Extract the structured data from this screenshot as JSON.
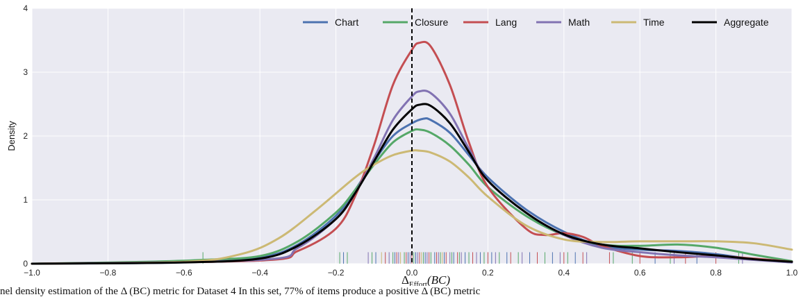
{
  "chart_data": {
    "type": "line",
    "title": "",
    "xlabel": "Δ",
    "xlabel_sub": "Effort",
    "xlabel_arg": "(BC)",
    "ylabel": "Density",
    "xlim": [
      -1.0,
      1.0
    ],
    "ylim": [
      0,
      4
    ],
    "xticks": [
      -1.0,
      -0.8,
      -0.6,
      -0.4,
      -0.2,
      0.0,
      0.2,
      0.4,
      0.6,
      0.8,
      1.0
    ],
    "xtick_labels": [
      "−1.0",
      "−0.8",
      "−0.6",
      "−0.4",
      "−0.2",
      "0.0",
      "0.2",
      "0.4",
      "0.6",
      "0.8",
      "1.0"
    ],
    "yticks": [
      0,
      1,
      2,
      3,
      4
    ],
    "ytick_labels": [
      "0",
      "1",
      "2",
      "3",
      "4"
    ],
    "grid": true,
    "legend_position": "top-right",
    "vline": {
      "x": 0.0,
      "style": "dashed",
      "color": "#000000"
    },
    "series": [
      {
        "name": "Chart",
        "color": "#4c72b0",
        "width": 3,
        "x": [
          -1.0,
          -0.6,
          -0.4,
          -0.3,
          -0.2,
          -0.15,
          -0.1,
          -0.05,
          0.0,
          0.03,
          0.05,
          0.1,
          0.15,
          0.2,
          0.3,
          0.4,
          0.5,
          0.6,
          0.7,
          0.8,
          0.9,
          1.0
        ],
        "y": [
          0.0,
          0.02,
          0.1,
          0.3,
          0.75,
          1.15,
          1.6,
          2.0,
          2.2,
          2.27,
          2.25,
          2.05,
          1.7,
          1.35,
          0.85,
          0.5,
          0.28,
          0.22,
          0.2,
          0.15,
          0.07,
          0.02
        ]
      },
      {
        "name": "Closure",
        "color": "#55a868",
        "width": 3,
        "x": [
          -1.0,
          -0.7,
          -0.55,
          -0.4,
          -0.3,
          -0.2,
          -0.15,
          -0.1,
          -0.05,
          0.0,
          0.02,
          0.05,
          0.1,
          0.15,
          0.2,
          0.3,
          0.4,
          0.5,
          0.6,
          0.7,
          0.8,
          0.9,
          1.0
        ],
        "y": [
          0.0,
          0.03,
          0.06,
          0.12,
          0.35,
          0.8,
          1.15,
          1.55,
          1.9,
          2.08,
          2.1,
          2.05,
          1.85,
          1.55,
          1.2,
          0.75,
          0.45,
          0.3,
          0.28,
          0.3,
          0.25,
          0.14,
          0.04
        ]
      },
      {
        "name": "Lang",
        "color": "#c44e52",
        "width": 3,
        "x": [
          -1.0,
          -0.4,
          -0.3,
          -0.2,
          -0.15,
          -0.1,
          -0.05,
          0.0,
          0.02,
          0.05,
          0.1,
          0.15,
          0.2,
          0.3,
          0.35,
          0.4,
          0.45,
          0.5,
          0.6,
          0.7,
          0.8,
          0.9,
          1.0
        ],
        "y": [
          0.0,
          0.05,
          0.2,
          0.55,
          1.05,
          1.85,
          2.8,
          3.35,
          3.46,
          3.4,
          2.8,
          1.9,
          1.2,
          0.55,
          0.45,
          0.48,
          0.42,
          0.28,
          0.12,
          0.1,
          0.12,
          0.08,
          0.03
        ]
      },
      {
        "name": "Math",
        "color": "#8172b2",
        "width": 3,
        "x": [
          -1.0,
          -0.4,
          -0.3,
          -0.2,
          -0.15,
          -0.1,
          -0.05,
          0.0,
          0.02,
          0.05,
          0.1,
          0.15,
          0.2,
          0.3,
          0.4,
          0.5,
          0.6,
          0.7,
          0.8,
          0.9,
          1.0
        ],
        "y": [
          0.0,
          0.06,
          0.25,
          0.7,
          1.1,
          1.65,
          2.25,
          2.62,
          2.7,
          2.67,
          2.35,
          1.8,
          1.3,
          0.8,
          0.45,
          0.25,
          0.18,
          0.13,
          0.1,
          0.06,
          0.02
        ]
      },
      {
        "name": "Time",
        "color": "#ccb974",
        "width": 3,
        "x": [
          -1.0,
          -0.6,
          -0.45,
          -0.35,
          -0.25,
          -0.15,
          -0.1,
          -0.05,
          0.0,
          0.02,
          0.05,
          0.1,
          0.15,
          0.2,
          0.3,
          0.4,
          0.5,
          0.6,
          0.7,
          0.8,
          0.9,
          1.0
        ],
        "y": [
          0.0,
          0.03,
          0.15,
          0.4,
          0.85,
          1.35,
          1.55,
          1.7,
          1.77,
          1.77,
          1.74,
          1.6,
          1.35,
          1.05,
          0.6,
          0.38,
          0.34,
          0.35,
          0.35,
          0.35,
          0.32,
          0.22
        ]
      },
      {
        "name": "Aggregate",
        "color": "#000000",
        "width": 3,
        "x": [
          -1.0,
          -0.6,
          -0.4,
          -0.3,
          -0.2,
          -0.15,
          -0.1,
          -0.05,
          0.0,
          0.02,
          0.05,
          0.1,
          0.15,
          0.2,
          0.3,
          0.4,
          0.5,
          0.6,
          0.7,
          0.8,
          0.9,
          1.0
        ],
        "y": [
          0.0,
          0.02,
          0.08,
          0.28,
          0.7,
          1.1,
          1.6,
          2.1,
          2.42,
          2.49,
          2.47,
          2.2,
          1.75,
          1.3,
          0.8,
          0.46,
          0.3,
          0.24,
          0.18,
          0.13,
          0.07,
          0.03
        ]
      }
    ],
    "rug": {
      "height_density": 0.18,
      "marks": [
        {
          "x": -0.55,
          "color": "#55a868"
        },
        {
          "x": -0.19,
          "color": "#55a868"
        },
        {
          "x": -0.18,
          "color": "#4c72b0"
        },
        {
          "x": -0.17,
          "color": "#55a868"
        },
        {
          "x": -0.115,
          "color": "#8172b2"
        },
        {
          "x": -0.105,
          "color": "#55a868"
        },
        {
          "x": -0.095,
          "color": "#4c72b0"
        },
        {
          "x": -0.08,
          "color": "#ccb974"
        },
        {
          "x": -0.07,
          "color": "#c44e52"
        },
        {
          "x": -0.06,
          "color": "#8172b2"
        },
        {
          "x": -0.05,
          "color": "#55a868"
        },
        {
          "x": -0.045,
          "color": "#4c72b0"
        },
        {
          "x": -0.04,
          "color": "#c44e52"
        },
        {
          "x": -0.035,
          "color": "#8172b2"
        },
        {
          "x": -0.03,
          "color": "#ccb974"
        },
        {
          "x": -0.02,
          "color": "#55a868"
        },
        {
          "x": -0.015,
          "color": "#c44e52"
        },
        {
          "x": -0.01,
          "color": "#4c72b0"
        },
        {
          "x": -0.005,
          "color": "#8172b2"
        },
        {
          "x": 0.0,
          "color": "#c44e52"
        },
        {
          "x": 0.005,
          "color": "#55a868"
        },
        {
          "x": 0.01,
          "color": "#4c72b0"
        },
        {
          "x": 0.015,
          "color": "#8172b2"
        },
        {
          "x": 0.02,
          "color": "#c44e52"
        },
        {
          "x": 0.025,
          "color": "#ccb974"
        },
        {
          "x": 0.03,
          "color": "#55a868"
        },
        {
          "x": 0.035,
          "color": "#4c72b0"
        },
        {
          "x": 0.04,
          "color": "#8172b2"
        },
        {
          "x": 0.045,
          "color": "#c44e52"
        },
        {
          "x": 0.05,
          "color": "#55a868"
        },
        {
          "x": 0.06,
          "color": "#4c72b0"
        },
        {
          "x": 0.065,
          "color": "#c44e52"
        },
        {
          "x": 0.07,
          "color": "#8172b2"
        },
        {
          "x": 0.075,
          "color": "#55a868"
        },
        {
          "x": 0.08,
          "color": "#ccb974"
        },
        {
          "x": 0.085,
          "color": "#4c72b0"
        },
        {
          "x": 0.09,
          "color": "#c44e52"
        },
        {
          "x": 0.1,
          "color": "#8172b2"
        },
        {
          "x": 0.105,
          "color": "#55a868"
        },
        {
          "x": 0.11,
          "color": "#4c72b0"
        },
        {
          "x": 0.12,
          "color": "#c44e52"
        },
        {
          "x": 0.125,
          "color": "#55a868"
        },
        {
          "x": 0.13,
          "color": "#8172b2"
        },
        {
          "x": 0.14,
          "color": "#4c72b0"
        },
        {
          "x": 0.15,
          "color": "#55a868"
        },
        {
          "x": 0.16,
          "color": "#c44e52"
        },
        {
          "x": 0.17,
          "color": "#8172b2"
        },
        {
          "x": 0.18,
          "color": "#4c72b0"
        },
        {
          "x": 0.19,
          "color": "#55a868"
        },
        {
          "x": 0.2,
          "color": "#c44e52"
        },
        {
          "x": 0.21,
          "color": "#4c72b0"
        },
        {
          "x": 0.22,
          "color": "#8172b2"
        },
        {
          "x": 0.23,
          "color": "#55a868"
        },
        {
          "x": 0.25,
          "color": "#4c72b0"
        },
        {
          "x": 0.26,
          "color": "#c44e52"
        },
        {
          "x": 0.28,
          "color": "#55a868"
        },
        {
          "x": 0.29,
          "color": "#8172b2"
        },
        {
          "x": 0.31,
          "color": "#4c72b0"
        },
        {
          "x": 0.33,
          "color": "#c44e52"
        },
        {
          "x": 0.35,
          "color": "#55a868"
        },
        {
          "x": 0.37,
          "color": "#4c72b0"
        },
        {
          "x": 0.39,
          "color": "#8172b2"
        },
        {
          "x": 0.4,
          "color": "#c44e52"
        },
        {
          "x": 0.41,
          "color": "#55a868"
        },
        {
          "x": 0.43,
          "color": "#4c72b0"
        },
        {
          "x": 0.45,
          "color": "#c44e52"
        },
        {
          "x": 0.46,
          "color": "#8172b2"
        },
        {
          "x": 0.52,
          "color": "#c44e52"
        },
        {
          "x": 0.53,
          "color": "#55a868"
        },
        {
          "x": 0.58,
          "color": "#55a868"
        },
        {
          "x": 0.6,
          "color": "#c44e52"
        },
        {
          "x": 0.64,
          "color": "#4c72b0"
        },
        {
          "x": 0.68,
          "color": "#55a868"
        },
        {
          "x": 0.69,
          "color": "#8172b2"
        },
        {
          "x": 0.72,
          "color": "#c44e52"
        },
        {
          "x": 0.75,
          "color": "#4c72b0"
        },
        {
          "x": 0.8,
          "color": "#c44e52"
        },
        {
          "x": 0.86,
          "color": "#55a868"
        },
        {
          "x": 0.87,
          "color": "#8172b2"
        }
      ]
    }
  },
  "caption": "nel density estimation of the Δ    (BC) metric for Dataset 4 In this set, 77% of items produce a positive Δ    (BC) metric"
}
